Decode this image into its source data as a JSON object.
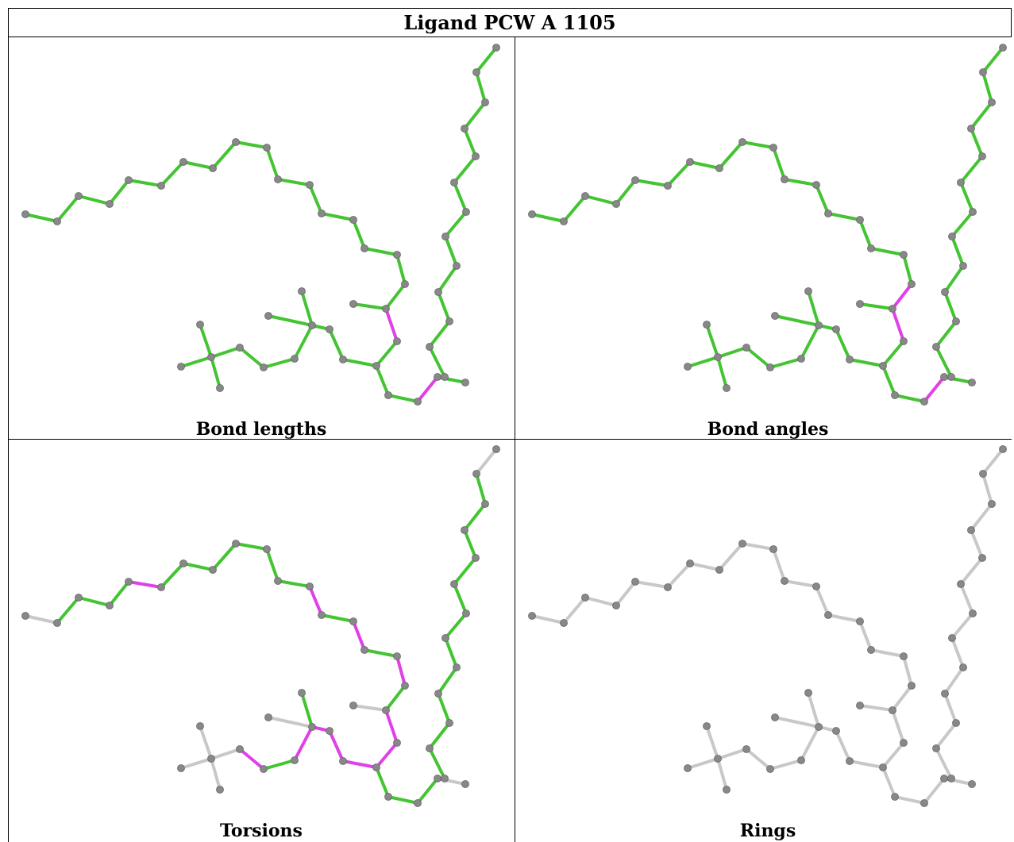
{
  "title": "Ligand PCW A 1105",
  "panels": [
    {
      "caption": "Bond lengths",
      "mode": "lengths"
    },
    {
      "caption": "Bond angles",
      "mode": "angles"
    },
    {
      "caption": "Torsions",
      "mode": "torsions"
    },
    {
      "caption": "Rings",
      "mode": "rings"
    }
  ],
  "colors": {
    "ok": "#44c433",
    "flagged": "#e040e8",
    "neutral": "#c8c8c8",
    "atom": "#888888",
    "border": "#000000"
  }
}
